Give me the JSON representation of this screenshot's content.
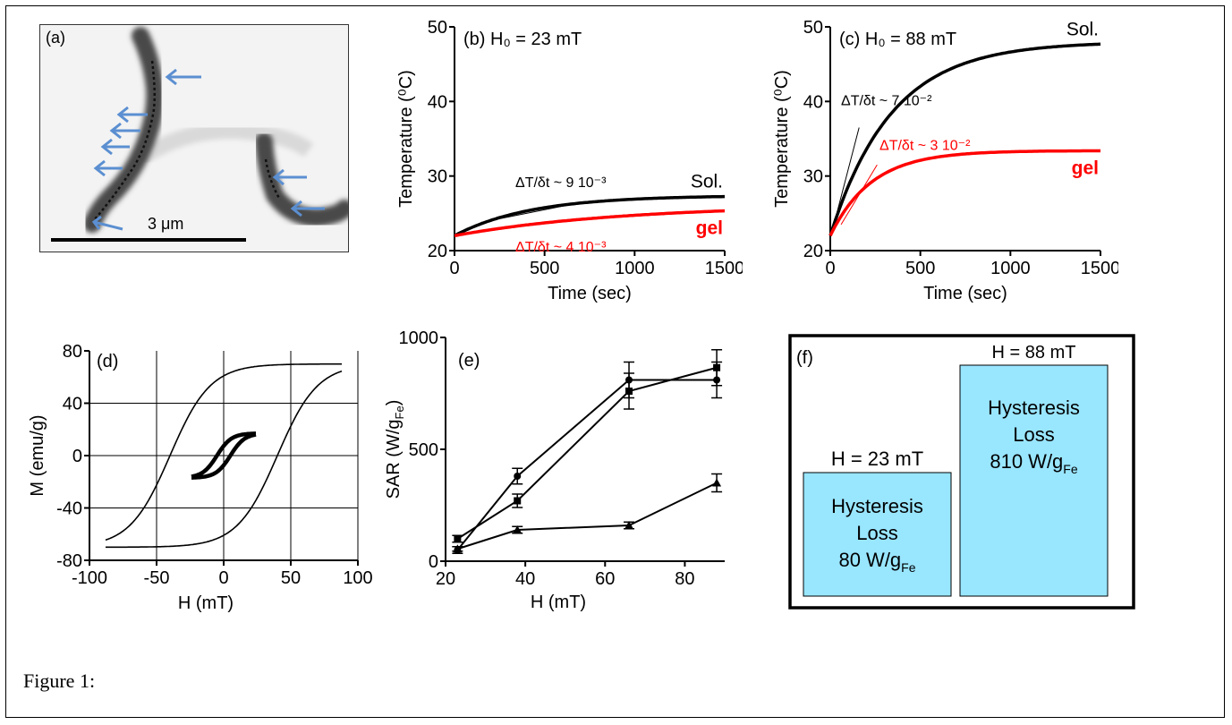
{
  "caption": "Figure 1:",
  "panel_a": {
    "label": "(a)",
    "scale_bar_label": "3 μm"
  },
  "chart_data": [
    {
      "id": "b",
      "type": "line",
      "label": "(b)",
      "title": "H₀ = 23 mT",
      "xlabel": "Time (sec)",
      "ylabel": "Temperature (⁰C)",
      "xlim": [
        0,
        1500
      ],
      "ylim": [
        20,
        50
      ],
      "xticks": [
        0,
        500,
        1000,
        1500
      ],
      "yticks": [
        20,
        30,
        40,
        50
      ],
      "series": [
        {
          "name": "Sol.",
          "color": "#000000",
          "T0": 22,
          "Tmax": 27.4,
          "tau": 420
        },
        {
          "name": "gel",
          "color": "#ff0000",
          "T0": 22,
          "Tmax": 26.2,
          "tau": 950
        }
      ],
      "annotations": [
        {
          "text": "ΔT/δt ~ 9 10⁻³",
          "color": "#000000"
        },
        {
          "text": "ΔT/δt ~ 4 10⁻³",
          "color": "#ff0000"
        }
      ]
    },
    {
      "id": "c",
      "type": "line",
      "label": "(c)",
      "title": "H₀ = 88 mT",
      "xlabel": "Time (sec)",
      "ylabel": "Temperature (⁰C)",
      "xlim": [
        0,
        1500
      ],
      "ylim": [
        20,
        50
      ],
      "xticks": [
        0,
        500,
        1000,
        1500
      ],
      "yticks": [
        20,
        30,
        40,
        50
      ],
      "series": [
        {
          "name": "Sol.",
          "color": "#000000",
          "T0": 22,
          "Tmax": 48,
          "tau": 340
        },
        {
          "name": "gel",
          "color": "#ff0000",
          "T0": 22,
          "Tmax": 33.4,
          "tau": 230
        }
      ],
      "annotations": [
        {
          "text": "ΔT/δt ~ 7 10⁻²",
          "color": "#000000"
        },
        {
          "text": "ΔT/δt ~ 3 10⁻²",
          "color": "#ff0000"
        }
      ]
    },
    {
      "id": "d",
      "type": "line",
      "label": "(d)",
      "xlabel": "H (mT)",
      "ylabel": "M (emu/g)",
      "xlim": [
        -100,
        100
      ],
      "ylim": [
        -80,
        80
      ],
      "xticks": [
        -100,
        -50,
        0,
        50,
        100
      ],
      "yticks": [
        -80,
        -40,
        0,
        40,
        80
      ],
      "grid": true,
      "series": [
        {
          "name": "major loop",
          "Hmax": 88,
          "Hc": 40,
          "Ms": 70
        },
        {
          "name": "minor loop",
          "Hmax": 24,
          "Hc": 5,
          "Ms": 17
        }
      ]
    },
    {
      "id": "e",
      "type": "line",
      "label": "(e)",
      "xlabel": "H (mT)",
      "ylabel": "SAR (W/g",
      "ylabel_sub": "Fe",
      "ylabel_end": ")",
      "xlim": [
        20,
        90
      ],
      "ylim": [
        0,
        1000
      ],
      "xticks": [
        20,
        40,
        60,
        80
      ],
      "yticks": [
        0,
        500,
        1000
      ],
      "series": [
        {
          "marker": "circle",
          "x": [
            23,
            38,
            66,
            88
          ],
          "y": [
            50,
            380,
            810,
            810
          ],
          "err": [
            15,
            35,
            80,
            80
          ]
        },
        {
          "marker": "square",
          "x": [
            23,
            38,
            66,
            88
          ],
          "y": [
            100,
            270,
            760,
            865
          ],
          "err": [
            15,
            30,
            80,
            80
          ]
        },
        {
          "marker": "triangle",
          "x": [
            23,
            38,
            66,
            88
          ],
          "y": [
            55,
            140,
            160,
            350
          ],
          "err": [
            10,
            15,
            15,
            40
          ]
        }
      ]
    },
    {
      "id": "f",
      "type": "bar",
      "label": "(f)",
      "categories": [
        "H = 23 mT",
        "H = 88 mT"
      ],
      "values": [
        80,
        810
      ],
      "bar_line1": "Hysteresis",
      "bar_line2": "Loss",
      "units": "W/g",
      "units_sub": "Fe",
      "color": "#99e6ff"
    }
  ]
}
